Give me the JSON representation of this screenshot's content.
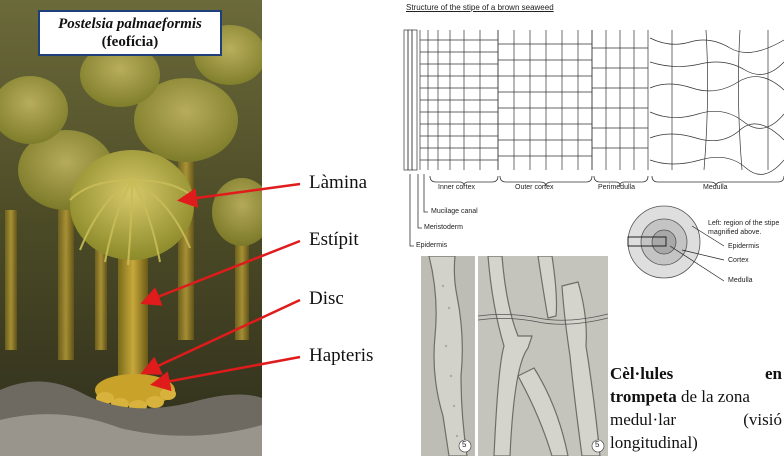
{
  "photo_box": {
    "species": "Postelsia palmaeformis",
    "group": "(feofícia)"
  },
  "labels": {
    "lamina": "Làmina",
    "estipit": "Estípit",
    "disc": "Disc",
    "hapteris": "Hapteris"
  },
  "diagram": {
    "title": "Structure of the stipe of a brown seaweed",
    "zones": {
      "inner_cortex": "Inner cortex",
      "outer_cortex": "Outer cortex",
      "perimedulla": "Perimedulla",
      "medulla": "Medulla",
      "mucilage_canal": "Mucilage canal",
      "meristoderm": "Meristoderm",
      "epidermis": "Epidermis"
    },
    "circle_note": "Left: region of the stipe magnified above.",
    "circle_labels": {
      "epidermis": "Epidermis",
      "cortex": "Cortex",
      "medulla": "Medulla"
    }
  },
  "micrographs": {
    "left_number": "5",
    "right_number": "5"
  },
  "caption": {
    "line1_a": "Cèl·lules",
    "line1_b": "en",
    "line2_bold": "trompeta",
    "line2_rest": " de la zona",
    "line3_a": "medul·lar",
    "line3_b": "(visió",
    "line4": "longitudinal)"
  },
  "colors": {
    "arrow": "#e01b1b",
    "box_border": "#1f3f7a"
  }
}
